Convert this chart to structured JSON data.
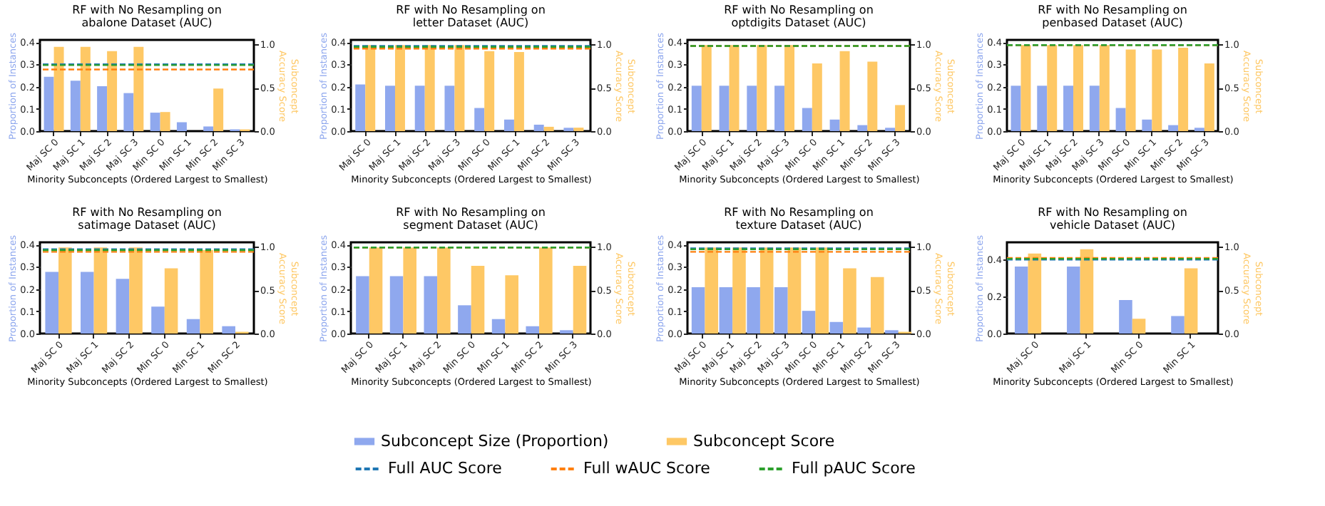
{
  "chart_data": [
    {
      "type": "bar",
      "title": "RF with No Resampling on\nabalone Dataset (AUC)",
      "xlabel": "Minority Subconcepts (Ordered Largest to Smallest)",
      "ylabel": "Proportion of Instances",
      "y2label": "Subconcept\nAccuracy Score",
      "categories": [
        "Maj SC 0",
        "Maj SC 1",
        "Maj SC 2",
        "Maj SC 3",
        "Min SC 0",
        "Min SC 1",
        "Min SC 2",
        "Min SC 3"
      ],
      "ylim": [
        0,
        0.41
      ],
      "yticks": [
        {
          "value": 0,
          "label": "0.0"
        },
        {
          "value": 0.1,
          "label": "0.1"
        },
        {
          "value": 0.2,
          "label": "0.2"
        },
        {
          "value": 0.3,
          "label": "0.3"
        },
        {
          "value": 0.4,
          "label": "0.4"
        }
      ],
      "y2lim": [
        0,
        1.05
      ],
      "y2ticks": [
        {
          "value": 0,
          "label": "0.0"
        },
        {
          "value": 0.5,
          "label": "0.5"
        },
        {
          "value": 1,
          "label": "1.0"
        }
      ],
      "legend": "bottom",
      "grid": false,
      "series": [
        {
          "name": "Subconcept Size (Proportion)",
          "color": "#8fa8ee",
          "values": [
            0.244,
            0.227,
            0.202,
            0.171,
            0.083,
            0.04,
            0.021,
            0.008
          ]
        },
        {
          "name": "Subconcept Score",
          "color": "#fec865",
          "axis": "y2",
          "values": [
            0.97,
            0.97,
            0.92,
            0.97,
            0.22,
            0,
            0.49,
            0.02
          ]
        }
      ],
      "ref_lines": [
        {
          "axis": "y2",
          "value": 0.77,
          "label": "Full AUC Score",
          "color": "#1f77b4",
          "line_style": "dashed"
        },
        {
          "axis": "y2",
          "value": 0.71,
          "label": "Full wAUC Score",
          "color": "#ff7f0e",
          "line_style": "dashed"
        },
        {
          "axis": "y2",
          "value": 0.76,
          "label": "Full pAUC Score",
          "color": "#2ca02c",
          "line_style": "dashed"
        }
      ]
    },
    {
      "type": "bar",
      "title": "RF with No Resampling on\nletter Dataset (AUC)",
      "xlabel": "Minority Subconcepts (Ordered Largest to Smallest)",
      "ylabel": "Proportion of Instances",
      "y2label": "Subconcept\nAccuracy Score",
      "categories": [
        "Maj SC 0",
        "Maj SC 1",
        "Maj SC 2",
        "Maj SC 3",
        "Min SC 0",
        "Min SC 1",
        "Min SC 2",
        "Min SC 3"
      ],
      "ylim": [
        0,
        0.41
      ],
      "yticks": [
        {
          "value": 0,
          "label": "0.0"
        },
        {
          "value": 0.1,
          "label": "0.1"
        },
        {
          "value": 0.2,
          "label": "0.2"
        },
        {
          "value": 0.3,
          "label": "0.3"
        },
        {
          "value": 0.4,
          "label": "0.4"
        }
      ],
      "y2lim": [
        0,
        1.05
      ],
      "y2ticks": [
        {
          "value": 0,
          "label": "0.0"
        },
        {
          "value": 0.5,
          "label": "0.5"
        },
        {
          "value": 1,
          "label": "1.0"
        }
      ],
      "legend": "bottom",
      "grid": false,
      "series": [
        {
          "name": "Subconcept Size (Proportion)",
          "color": "#8fa8ee",
          "values": [
            0.21,
            0.204,
            0.204,
            0.204,
            0.104,
            0.052,
            0.029,
            0.015
          ]
        },
        {
          "name": "Subconcept Score",
          "color": "#fec865",
          "axis": "y2",
          "values": [
            0.99,
            0.99,
            0.99,
            0.99,
            0.92,
            0.91,
            0.05,
            0.04
          ]
        }
      ],
      "ref_lines": [
        {
          "axis": "y2",
          "value": 0.98,
          "color": "#1f77b4",
          "line_style": "dashed"
        },
        {
          "axis": "y2",
          "value": 0.95,
          "color": "#ff7f0e",
          "line_style": "dashed"
        },
        {
          "axis": "y2",
          "value": 0.97,
          "color": "#2ca02c",
          "line_style": "dashed"
        }
      ]
    },
    {
      "type": "bar",
      "title": "RF with No Resampling on\noptdigits Dataset (AUC)",
      "xlabel": "Minority Subconcepts (Ordered Largest to Smallest)",
      "ylabel": "Proportion of Instances",
      "y2label": "Subconcept\nAccuracy Score",
      "categories": [
        "Maj SC 0",
        "Maj SC 1",
        "Maj SC 2",
        "Maj SC 3",
        "Min SC 0",
        "Min SC 1",
        "Min SC 2",
        "Min SC 3"
      ],
      "ylim": [
        0,
        0.41
      ],
      "yticks": [
        {
          "value": 0,
          "label": "0.0"
        },
        {
          "value": 0.1,
          "label": "0.1"
        },
        {
          "value": 0.2,
          "label": "0.2"
        },
        {
          "value": 0.3,
          "label": "0.3"
        },
        {
          "value": 0.4,
          "label": "0.4"
        }
      ],
      "y2lim": [
        0,
        1.05
      ],
      "y2ticks": [
        {
          "value": 0,
          "label": "0.0"
        },
        {
          "value": 0.5,
          "label": "0.5"
        },
        {
          "value": 1,
          "label": "1.0"
        }
      ],
      "legend": "bottom",
      "grid": false,
      "series": [
        {
          "name": "Subconcept Size (Proportion)",
          "color": "#8fa8ee",
          "values": [
            0.204,
            0.204,
            0.204,
            0.204,
            0.104,
            0.052,
            0.027,
            0.015
          ]
        },
        {
          "name": "Subconcept Score",
          "color": "#fec865",
          "axis": "y2",
          "values": [
            0.99,
            0.99,
            0.99,
            0.99,
            0.78,
            0.92,
            0.8,
            0.3
          ]
        }
      ],
      "ref_lines": [
        {
          "axis": "y2",
          "value": 0.98,
          "color": "#1f77b4",
          "line_style": "dashed"
        },
        {
          "axis": "y2",
          "value": 0.98,
          "color": "#ff7f0e",
          "line_style": "dashed"
        },
        {
          "axis": "y2",
          "value": 0.98,
          "color": "#2ca02c",
          "line_style": "dashed"
        }
      ]
    },
    {
      "type": "bar",
      "title": "RF with No Resampling on\npenbased Dataset (AUC)",
      "xlabel": "Minority Subconcepts (Ordered Largest to Smallest)",
      "ylabel": "Proportion of Instances",
      "y2label": "Subconcept\nAccuracy Score",
      "categories": [
        "Maj SC 0",
        "Maj SC 1",
        "Maj SC 2",
        "Maj SC 3",
        "Min SC 0",
        "Min SC 1",
        "Min SC 2",
        "Min SC 3"
      ],
      "ylim": [
        0,
        0.41
      ],
      "yticks": [
        {
          "value": 0,
          "label": "0.0"
        },
        {
          "value": 0.1,
          "label": "0.1"
        },
        {
          "value": 0.2,
          "label": "0.2"
        },
        {
          "value": 0.3,
          "label": "0.3"
        },
        {
          "value": 0.4,
          "label": "0.4"
        }
      ],
      "y2lim": [
        0,
        1.05
      ],
      "y2ticks": [
        {
          "value": 0,
          "label": "0.0"
        },
        {
          "value": 0.5,
          "label": "0.5"
        },
        {
          "value": 1,
          "label": "1.0"
        }
      ],
      "legend": "bottom",
      "grid": false,
      "series": [
        {
          "name": "Subconcept Size (Proportion)",
          "color": "#8fa8ee",
          "values": [
            0.204,
            0.204,
            0.204,
            0.204,
            0.104,
            0.052,
            0.027,
            0.015
          ]
        },
        {
          "name": "Subconcept Score",
          "color": "#fec865",
          "axis": "y2",
          "values": [
            0.99,
            0.99,
            0.99,
            0.99,
            0.94,
            0.94,
            0.96,
            0.78
          ]
        }
      ],
      "ref_lines": [
        {
          "axis": "y2",
          "value": 0.99,
          "color": "#1f77b4",
          "line_style": "dashed"
        },
        {
          "axis": "y2",
          "value": 0.99,
          "color": "#ff7f0e",
          "line_style": "dashed"
        },
        {
          "axis": "y2",
          "value": 0.99,
          "color": "#2ca02c",
          "line_style": "dashed"
        }
      ]
    },
    {
      "type": "bar",
      "title": "RF with No Resampling on\nsatimage Dataset (AUC)",
      "xlabel": "Minority Subconcepts (Ordered Largest to Smallest)",
      "ylabel": "Proportion of Instances",
      "y2label": "Subconcept\nAccuracy Score",
      "categories": [
        "Maj SC 0",
        "Maj SC 1",
        "Maj SC 2",
        "Min SC 0",
        "Min SC 1",
        "Min SC 2"
      ],
      "ylim": [
        0,
        0.41
      ],
      "yticks": [
        {
          "value": 0,
          "label": "0.0"
        },
        {
          "value": 0.1,
          "label": "0.1"
        },
        {
          "value": 0.2,
          "label": "0.2"
        },
        {
          "value": 0.3,
          "label": "0.3"
        },
        {
          "value": 0.4,
          "label": "0.4"
        }
      ],
      "y2lim": [
        0,
        1.05
      ],
      "y2ticks": [
        {
          "value": 0,
          "label": "0.0"
        },
        {
          "value": 0.5,
          "label": "0.5"
        },
        {
          "value": 1,
          "label": "1.0"
        }
      ],
      "legend": "bottom",
      "grid": false,
      "series": [
        {
          "name": "Subconcept Size (Proportion)",
          "color": "#8fa8ee",
          "values": [
            0.277,
            0.277,
            0.246,
            0.121,
            0.065,
            0.033
          ]
        },
        {
          "name": "Subconcept Score",
          "color": "#fec865",
          "axis": "y2",
          "values": [
            0.99,
            0.99,
            0.99,
            0.75,
            0.96,
            0.02
          ]
        }
      ],
      "ref_lines": [
        {
          "axis": "y2",
          "value": 0.97,
          "color": "#1f77b4",
          "line_style": "dashed"
        },
        {
          "axis": "y2",
          "value": 0.94,
          "color": "#ff7f0e",
          "line_style": "dashed"
        },
        {
          "axis": "y2",
          "value": 0.96,
          "color": "#2ca02c",
          "line_style": "dashed"
        }
      ]
    },
    {
      "type": "bar",
      "title": "RF with No Resampling on\nsegment Dataset (AUC)",
      "xlabel": "Minority Subconcepts (Ordered Largest to Smallest)",
      "ylabel": "Proportion of Instances",
      "y2label": "Subconcept\nAccuracy Score",
      "categories": [
        "Maj SC 0",
        "Maj SC 1",
        "Maj SC 2",
        "Min SC 0",
        "Min SC 1",
        "Min SC 2",
        "Min SC 3"
      ],
      "ylim": [
        0,
        0.41
      ],
      "yticks": [
        {
          "value": 0,
          "label": "0.0"
        },
        {
          "value": 0.1,
          "label": "0.1"
        },
        {
          "value": 0.2,
          "label": "0.2"
        },
        {
          "value": 0.3,
          "label": "0.3"
        },
        {
          "value": 0.4,
          "label": "0.4"
        }
      ],
      "y2lim": [
        0,
        1.05
      ],
      "y2ticks": [
        {
          "value": 0,
          "label": "0.0"
        },
        {
          "value": 0.5,
          "label": "0.5"
        },
        {
          "value": 1,
          "label": "1.0"
        }
      ],
      "legend": "bottom",
      "grid": false,
      "series": [
        {
          "name": "Subconcept Size (Proportion)",
          "color": "#8fa8ee",
          "values": [
            0.258,
            0.258,
            0.258,
            0.127,
            0.065,
            0.033,
            0.015
          ]
        },
        {
          "name": "Subconcept Score",
          "color": "#fec865",
          "axis": "y2",
          "values": [
            0.99,
            0.99,
            0.99,
            0.78,
            0.67,
            0.99,
            0.78
          ]
        }
      ],
      "ref_lines": [
        {
          "axis": "y2",
          "value": 0.99,
          "color": "#1f77b4",
          "line_style": "dashed"
        },
        {
          "axis": "y2",
          "value": 0.99,
          "color": "#ff7f0e",
          "line_style": "dashed"
        },
        {
          "axis": "y2",
          "value": 0.99,
          "color": "#2ca02c",
          "line_style": "dashed"
        }
      ]
    },
    {
      "type": "bar",
      "title": "RF with No Resampling on\ntexture Dataset (AUC)",
      "xlabel": "Minority Subconcepts (Ordered Largest to Smallest)",
      "ylabel": "Proportion of Instances",
      "y2label": "Subconcept\nAccuracy Score",
      "categories": [
        "Maj SC 0",
        "Maj SC 1",
        "Maj SC 2",
        "Maj SC 3",
        "Min SC 0",
        "Min SC 1",
        "Min SC 2",
        "Min SC 3"
      ],
      "ylim": [
        0,
        0.41
      ],
      "yticks": [
        {
          "value": 0,
          "label": "0.0"
        },
        {
          "value": 0.1,
          "label": "0.1"
        },
        {
          "value": 0.2,
          "label": "0.2"
        },
        {
          "value": 0.3,
          "label": "0.3"
        },
        {
          "value": 0.4,
          "label": "0.4"
        }
      ],
      "y2lim": [
        0,
        1.05
      ],
      "y2ticks": [
        {
          "value": 0,
          "label": "0.0"
        },
        {
          "value": 0.5,
          "label": "0.5"
        },
        {
          "value": 1,
          "label": "1.0"
        }
      ],
      "legend": "bottom",
      "grid": false,
      "series": [
        {
          "name": "Subconcept Size (Proportion)",
          "color": "#8fa8ee",
          "values": [
            0.208,
            0.208,
            0.208,
            0.208,
            0.102,
            0.052,
            0.027,
            0.015
          ]
        },
        {
          "name": "Subconcept Score",
          "color": "#fec865",
          "axis": "y2",
          "values": [
            0.99,
            0.99,
            0.99,
            0.99,
            0.99,
            0.75,
            0.65,
            0.02
          ]
        }
      ],
      "ref_lines": [
        {
          "axis": "y2",
          "value": 0.98,
          "color": "#1f77b4",
          "line_style": "dashed"
        },
        {
          "axis": "y2",
          "value": 0.94,
          "color": "#ff7f0e",
          "line_style": "dashed"
        },
        {
          "axis": "y2",
          "value": 0.97,
          "color": "#2ca02c",
          "line_style": "dashed"
        }
      ]
    },
    {
      "type": "bar",
      "title": "RF with No Resampling on\nvehicle Dataset (AUC)",
      "xlabel": "Minority Subconcepts (Ordered Largest to Smallest)",
      "ylabel": "Proportion of Instances",
      "y2label": "Subconcept\nAccuracy Score",
      "categories": [
        "Maj SC 0",
        "Maj SC 1",
        "Min SC 0",
        "Min SC 1"
      ],
      "ylim": [
        0,
        0.49
      ],
      "yticks": [
        {
          "value": 0,
          "label": "0.0"
        },
        {
          "value": 0.2,
          "label": "0.2"
        },
        {
          "value": 0.4,
          "label": "0.4"
        }
      ],
      "y2lim": [
        0,
        1.05
      ],
      "y2ticks": [
        {
          "value": 0,
          "label": "0.0"
        },
        {
          "value": 0.5,
          "label": "0.5"
        },
        {
          "value": 1,
          "label": "1.0"
        }
      ],
      "legend": "bottom",
      "grid": false,
      "series": [
        {
          "name": "Subconcept Size (Proportion)",
          "color": "#8fa8ee",
          "values": [
            0.36,
            0.36,
            0.18,
            0.094
          ]
        },
        {
          "name": "Subconcept Score",
          "color": "#fec865",
          "axis": "y2",
          "values": [
            0.92,
            0.97,
            0.17,
            0.75
          ]
        }
      ],
      "ref_lines": [
        {
          "axis": "y2",
          "value": 0.85,
          "color": "#1f77b4",
          "line_style": "dashed"
        },
        {
          "axis": "y2",
          "value": 0.87,
          "color": "#ff7f0e",
          "line_style": "dashed"
        },
        {
          "axis": "y2",
          "value": 0.86,
          "color": "#2ca02c",
          "line_style": "dashed"
        }
      ]
    }
  ]
}
